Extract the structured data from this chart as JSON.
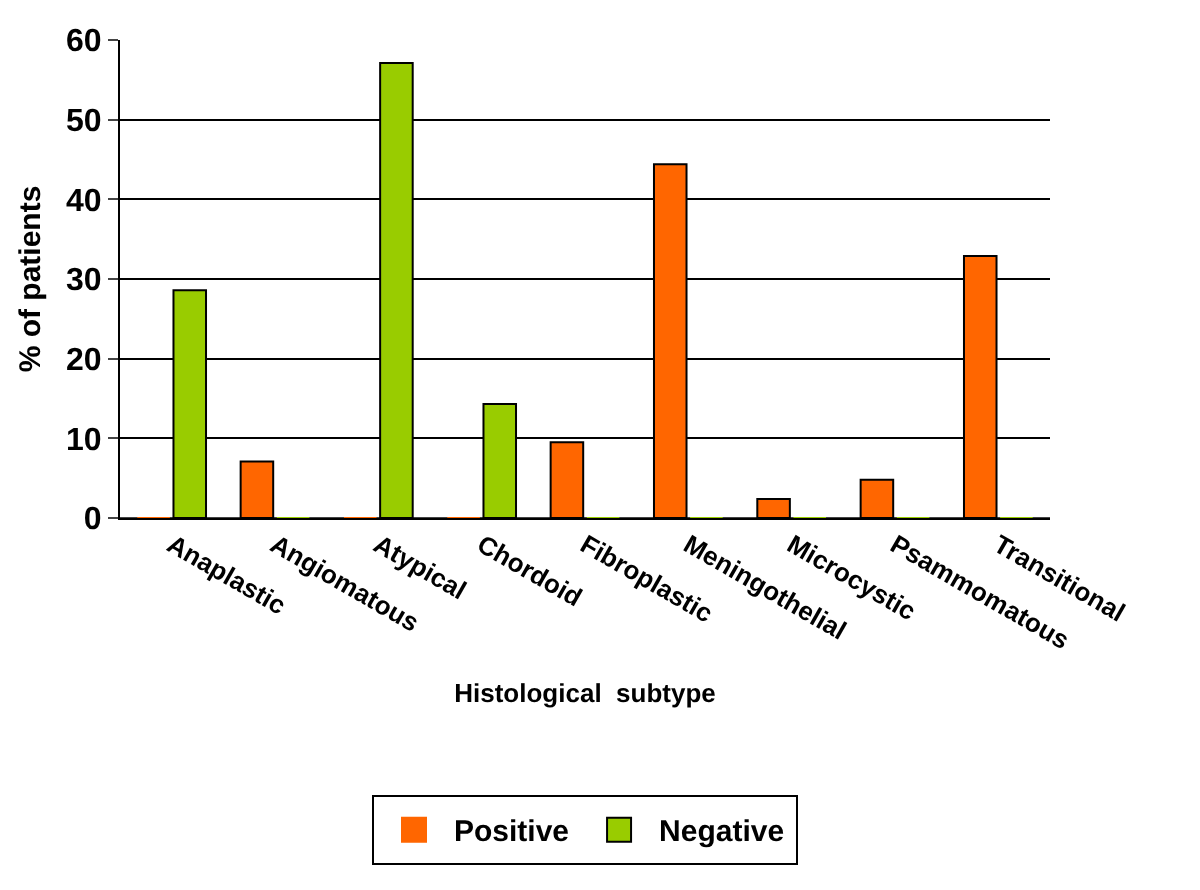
{
  "chart_data": {
    "type": "bar",
    "xlabel": "Histological  subtype",
    "ylabel": "% of patients",
    "categories": [
      "Anaplastic",
      "Angiomatous",
      "Atypical",
      "Chordoid",
      "Fibroplastic",
      "Meningothelial",
      "Microcystic",
      "Psammomatous",
      "Transitional"
    ],
    "series": [
      {
        "name": "Positive",
        "color": "#ff6600",
        "values": [
          0,
          7.1,
          0,
          0,
          9.5,
          44.4,
          2.4,
          4.8,
          32.9
        ]
      },
      {
        "name": "Negative",
        "color": "#99cc00",
        "values": [
          28.6,
          0,
          57.1,
          14.3,
          0,
          0,
          0,
          0,
          0
        ]
      }
    ],
    "ylim": [
      0,
      60
    ],
    "yticks": [
      0,
      10,
      20,
      30,
      40,
      50,
      60
    ],
    "grid": "y",
    "legend": "bottom"
  }
}
